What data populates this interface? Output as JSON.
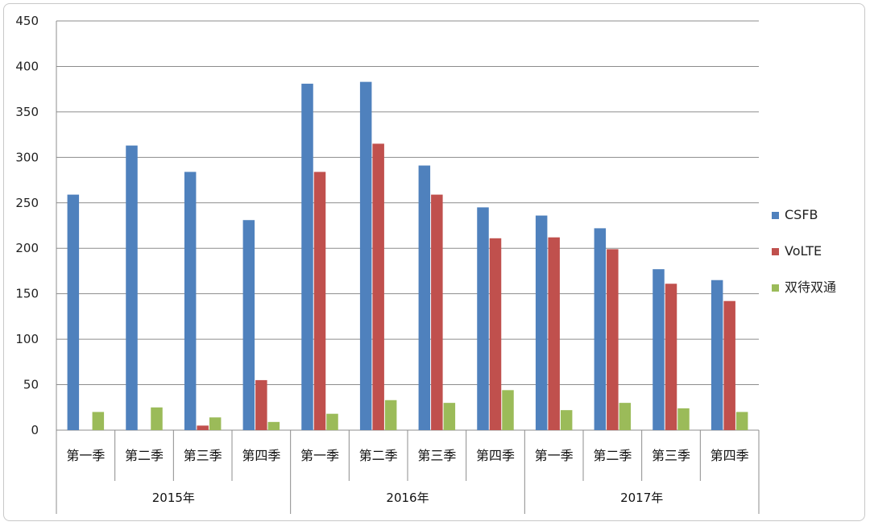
{
  "chart_data": {
    "type": "bar",
    "title": "",
    "xlabel": "",
    "ylabel": "",
    "ylim": [
      0,
      450
    ],
    "yticks": [
      "0",
      "50",
      "100",
      "150",
      "200",
      "250",
      "300",
      "350",
      "400",
      "450"
    ],
    "grid": true,
    "legend_position": "right",
    "groups": [
      {
        "label": "2015年",
        "categories": [
          "第一季",
          "第二季",
          "第三季",
          "第四季"
        ]
      },
      {
        "label": "2016年",
        "categories": [
          "第一季",
          "第二季",
          "第三季",
          "第四季"
        ]
      },
      {
        "label": "2017年",
        "categories": [
          "第一季",
          "第二季",
          "第三季",
          "第四季"
        ]
      }
    ],
    "series": [
      {
        "name": "CSFB",
        "color": "#4f81bd",
        "values": [
          259,
          313,
          284,
          231,
          381,
          383,
          291,
          245,
          236,
          222,
          177,
          165
        ]
      },
      {
        "name": "VoLTE",
        "color": "#c0504d",
        "values": [
          0,
          0,
          5,
          55,
          284,
          315,
          259,
          211,
          212,
          199,
          161,
          142
        ]
      },
      {
        "name": "双待双通",
        "color": "#9bbb59",
        "values": [
          20,
          25,
          14,
          9,
          18,
          33,
          30,
          44,
          22,
          30,
          24,
          20
        ]
      }
    ]
  }
}
